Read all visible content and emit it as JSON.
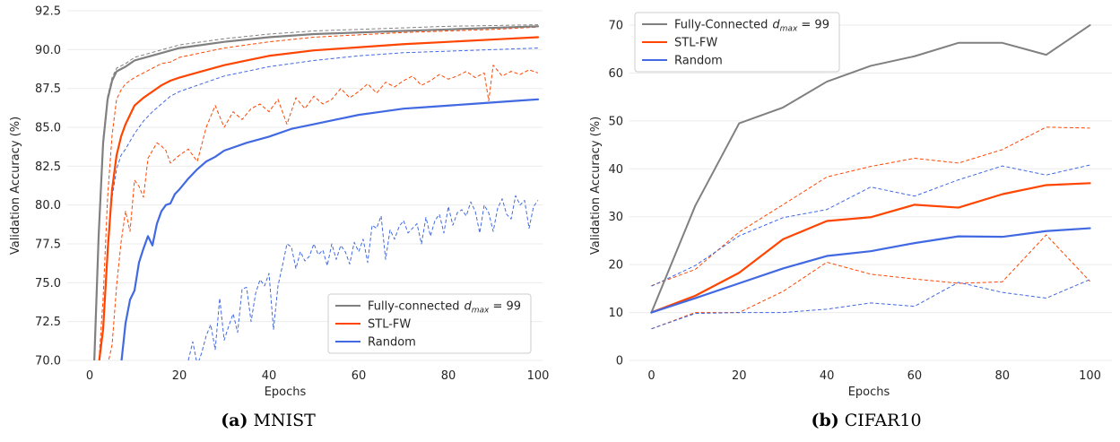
{
  "chart_data": [
    {
      "type": "line",
      "panel_id": "a",
      "caption_prefix": "(a)",
      "caption_text": "MNIST",
      "xlabel": "Epochs",
      "ylabel": "Validation Accuracy (%)",
      "xlim": [
        -5,
        101
      ],
      "ylim": [
        70,
        92.5
      ],
      "xticks": [
        0,
        20,
        40,
        60,
        80,
        100
      ],
      "yticks": [
        70.0,
        72.5,
        75.0,
        77.5,
        80.0,
        82.5,
        85.0,
        87.5,
        90.0,
        92.5
      ],
      "ytick_labels": [
        "70.0",
        "72.5",
        "75.0",
        "77.5",
        "80.0",
        "82.5",
        "85.0",
        "87.5",
        "90.0",
        "92.5"
      ],
      "grid": "horizontal",
      "legend_placement": "bottom-right",
      "legend": [
        {
          "name": "Fully-connected",
          "math": "d",
          "sub": "max",
          "suffix": " = 99",
          "color": "#808080"
        },
        {
          "name": "STL-FW",
          "color": "#FF4500"
        },
        {
          "name": "Random",
          "color": "#4169E1"
        }
      ],
      "series": [
        {
          "name": "Fully-connected mean",
          "color": "#808080",
          "width": 2.2,
          "dash": false,
          "x": [
            1,
            2,
            3,
            4,
            5,
            6,
            8,
            10,
            15,
            20,
            30,
            40,
            50,
            60,
            70,
            80,
            90,
            100
          ],
          "y": [
            68,
            78,
            84,
            86.8,
            88,
            88.6,
            88.9,
            89.3,
            89.7,
            90.1,
            90.5,
            90.8,
            91.0,
            91.1,
            91.2,
            91.3,
            91.4,
            91.5
          ]
        },
        {
          "name": "Fully-connected upper",
          "color": "#808080",
          "width": 1,
          "dash": true,
          "x": [
            1,
            2,
            3,
            4,
            5,
            6,
            8,
            10,
            15,
            20,
            30,
            40,
            50,
            60,
            70,
            80,
            90,
            100
          ],
          "y": [
            68,
            78.5,
            84.3,
            87,
            88.2,
            88.8,
            89.1,
            89.5,
            89.9,
            90.3,
            90.7,
            91.0,
            91.2,
            91.3,
            91.4,
            91.5,
            91.55,
            91.6
          ]
        },
        {
          "name": "STL-FW mean",
          "color": "#FF4500",
          "width": 2.2,
          "dash": false,
          "x": [
            2,
            3,
            4,
            5,
            6,
            7,
            8,
            9,
            10,
            12,
            14,
            16,
            18,
            20,
            25,
            30,
            35,
            40,
            50,
            60,
            70,
            80,
            90,
            100
          ],
          "y": [
            68,
            72,
            77,
            81,
            83.2,
            84.4,
            85.2,
            85.8,
            86.4,
            86.9,
            87.3,
            87.7,
            88.0,
            88.2,
            88.6,
            89.0,
            89.3,
            89.6,
            89.95,
            90.15,
            90.35,
            90.5,
            90.65,
            90.8
          ]
        },
        {
          "name": "STL-FW upper",
          "color": "#FF4500",
          "width": 1,
          "dash": true,
          "x": [
            2,
            3,
            4,
            5,
            6,
            7,
            8,
            10,
            12,
            14,
            16,
            18,
            20,
            25,
            30,
            35,
            40,
            50,
            60,
            70,
            80,
            90,
            100
          ],
          "y": [
            68,
            74,
            80.5,
            84.5,
            86.8,
            87.4,
            87.8,
            88.2,
            88.5,
            88.8,
            89.1,
            89.2,
            89.5,
            89.8,
            90.1,
            90.3,
            90.5,
            90.8,
            90.95,
            91.1,
            91.2,
            91.3,
            91.45
          ]
        },
        {
          "name": "STL-FW lower",
          "color": "#FF4500",
          "width": 1,
          "dash": true,
          "x": [
            4,
            5,
            6,
            7,
            8,
            9,
            10,
            11,
            12,
            13,
            14,
            15,
            16,
            17,
            18,
            20,
            22,
            24,
            26,
            28,
            30,
            32,
            34,
            36,
            38,
            40,
            42,
            44,
            46,
            48,
            50,
            52,
            54,
            56,
            58,
            60,
            62,
            64,
            66,
            68,
            70,
            72,
            74,
            76,
            78,
            80,
            82,
            84,
            86,
            88,
            89,
            90,
            92,
            94,
            96,
            98,
            100
          ],
          "y": [
            66,
            71,
            74.8,
            77.6,
            79.6,
            78.3,
            81.6,
            81.2,
            80.5,
            83.0,
            83.5,
            84.0,
            83.8,
            83.5,
            82.7,
            83.2,
            83.6,
            82.8,
            85.0,
            86.4,
            85.0,
            86.0,
            85.5,
            86.2,
            86.5,
            86.0,
            86.8,
            85.2,
            86.9,
            86.2,
            87.0,
            86.5,
            86.8,
            87.5,
            86.9,
            87.3,
            87.8,
            87.2,
            87.9,
            87.6,
            88.0,
            88.3,
            87.7,
            88.0,
            88.4,
            88.1,
            88.3,
            88.6,
            88.2,
            88.5,
            86.7,
            89.0,
            88.3,
            88.6,
            88.4,
            88.7,
            88.5
          ]
        },
        {
          "name": "Random mean",
          "color": "#4169E1",
          "width": 2.2,
          "dash": false,
          "x": [
            7,
            8,
            9,
            10,
            11,
            12,
            13,
            14,
            15,
            16,
            17,
            18,
            19,
            20,
            22,
            24,
            26,
            28,
            30,
            35,
            40,
            45,
            50,
            55,
            60,
            65,
            70,
            75,
            80,
            85,
            90,
            95,
            100
          ],
          "y": [
            69,
            72.4,
            73.9,
            74.5,
            76.3,
            77.2,
            78.0,
            77.4,
            78.8,
            79.6,
            80.0,
            80.1,
            80.7,
            81.0,
            81.7,
            82.3,
            82.8,
            83.1,
            83.5,
            84.0,
            84.4,
            84.9,
            85.2,
            85.5,
            85.8,
            86.0,
            86.2,
            86.3,
            86.4,
            86.5,
            86.6,
            86.7,
            86.8
          ]
        },
        {
          "name": "Random upper",
          "color": "#4169E1",
          "width": 1,
          "dash": true,
          "x": [
            2,
            3,
            4,
            5,
            6,
            7,
            8,
            10,
            12,
            14,
            16,
            18,
            20,
            25,
            30,
            35,
            40,
            50,
            60,
            70,
            80,
            90,
            100
          ],
          "y": [
            68,
            72,
            77.5,
            80.5,
            82.3,
            83.2,
            83.6,
            84.6,
            85.4,
            86.0,
            86.5,
            87.0,
            87.3,
            87.8,
            88.3,
            88.6,
            88.9,
            89.3,
            89.6,
            89.8,
            89.9,
            90.0,
            90.1
          ]
        },
        {
          "name": "Random lower",
          "color": "#4169E1",
          "width": 1,
          "dash": true,
          "x": [
            22,
            23,
            24,
            25,
            26,
            27,
            28,
            29,
            30,
            31,
            32,
            33,
            34,
            35,
            36,
            37,
            38,
            39,
            40,
            41,
            42,
            43,
            44,
            45,
            46,
            47,
            48,
            49,
            50,
            51,
            52,
            53,
            54,
            55,
            56,
            57,
            58,
            59,
            60,
            61,
            62,
            63,
            64,
            65,
            66,
            67,
            68,
            69,
            70,
            71,
            72,
            73,
            74,
            75,
            76,
            77,
            78,
            79,
            80,
            81,
            82,
            83,
            84,
            85,
            86,
            87,
            88,
            89,
            90,
            91,
            92,
            93,
            94,
            95,
            96,
            97,
            98,
            99,
            100
          ],
          "y": [
            70,
            71.2,
            68.5,
            70.5,
            71.6,
            72.3,
            70.7,
            74.0,
            71.3,
            72.2,
            73.0,
            71.8,
            74.6,
            74.7,
            72.5,
            74.3,
            75.2,
            74.8,
            75.6,
            72.0,
            74.8,
            76.1,
            77.5,
            77.3,
            75.9,
            77.0,
            76.4,
            76.7,
            77.5,
            76.8,
            77.1,
            76.1,
            77.5,
            76.5,
            77.4,
            77.0,
            76.2,
            77.6,
            77.0,
            77.8,
            76.3,
            78.7,
            78.5,
            79.3,
            76.5,
            78.4,
            77.8,
            78.6,
            79.0,
            78.2,
            78.5,
            78.8,
            77.5,
            79.2,
            78.0,
            79.0,
            79.4,
            78.2,
            79.9,
            78.7,
            79.5,
            79.7,
            79.3,
            80.2,
            79.6,
            78.2,
            80.0,
            79.5,
            78.3,
            79.8,
            80.4,
            79.4,
            79.1,
            80.6,
            80.0,
            80.3,
            78.5,
            79.9,
            80.3
          ]
        }
      ]
    },
    {
      "type": "line",
      "panel_id": "b",
      "caption_prefix": "(b)",
      "caption_text": "CIFAR10",
      "xlabel": "Epochs",
      "ylabel": "Validation Accuracy (%)",
      "xlim": [
        -5,
        105
      ],
      "ylim": [
        0,
        73
      ],
      "xticks": [
        0,
        20,
        40,
        60,
        80,
        100
      ],
      "yticks": [
        0,
        10,
        20,
        30,
        40,
        50,
        60,
        70
      ],
      "ytick_labels": [
        "0",
        "10",
        "20",
        "30",
        "40",
        "50",
        "60",
        "70"
      ],
      "grid": "horizontal",
      "legend_placement": "top-left",
      "legend": [
        {
          "name": "Fully-Connected",
          "math": "d",
          "sub": "max",
          "suffix": " = 99",
          "color": "#808080"
        },
        {
          "name": "STL-FW",
          "color": "#FF4500"
        },
        {
          "name": "Random",
          "color": "#4169E1"
        }
      ],
      "series": [
        {
          "name": "Fully-Connected mean",
          "color": "#808080",
          "width": 2,
          "dash": false,
          "x": [
            0,
            10,
            20,
            30,
            40,
            50,
            60,
            70,
            80,
            90,
            100
          ],
          "y": [
            10.0,
            32.3,
            49.5,
            52.8,
            58.2,
            61.5,
            63.5,
            66.3,
            66.3,
            63.8,
            70.0
          ]
        },
        {
          "name": "STL-FW mean",
          "color": "#FF4500",
          "width": 2.2,
          "dash": false,
          "x": [
            0,
            10,
            20,
            30,
            40,
            50,
            60,
            70,
            80,
            90,
            100
          ],
          "y": [
            10.0,
            13.5,
            18.3,
            25.3,
            29.1,
            29.9,
            32.5,
            31.9,
            34.7,
            36.6,
            37.0
          ]
        },
        {
          "name": "STL-FW upper",
          "color": "#FF4500",
          "width": 1,
          "dash": true,
          "x": [
            0,
            10,
            20,
            30,
            40,
            50,
            60,
            70,
            80,
            90,
            100
          ],
          "y": [
            15.6,
            19.0,
            26.8,
            32.5,
            38.3,
            40.5,
            42.2,
            41.2,
            44.0,
            48.7,
            48.5
          ]
        },
        {
          "name": "STL-FW lower",
          "color": "#FF4500",
          "width": 1,
          "dash": true,
          "x": [
            0,
            10,
            20,
            30,
            40,
            50,
            60,
            70,
            80,
            90,
            100
          ],
          "y": [
            6.6,
            10.0,
            10.0,
            14.4,
            20.5,
            18.0,
            17.0,
            16.1,
            16.4,
            26.2,
            16.5
          ]
        },
        {
          "name": "Random mean",
          "color": "#4169E1",
          "width": 2.2,
          "dash": false,
          "x": [
            0,
            10,
            20,
            30,
            40,
            50,
            60,
            70,
            80,
            90,
            100
          ],
          "y": [
            10.0,
            13.0,
            16.1,
            19.2,
            21.8,
            22.8,
            24.5,
            25.9,
            25.8,
            27.0,
            27.6
          ]
        },
        {
          "name": "Random upper",
          "color": "#4169E1",
          "width": 1,
          "dash": true,
          "x": [
            0,
            10,
            20,
            30,
            40,
            50,
            60,
            70,
            80,
            90,
            100
          ],
          "y": [
            15.5,
            19.8,
            26.0,
            29.8,
            31.5,
            36.2,
            34.3,
            37.7,
            40.6,
            38.7,
            40.8
          ]
        },
        {
          "name": "Random lower",
          "color": "#4169E1",
          "width": 1,
          "dash": true,
          "x": [
            0,
            10,
            20,
            30,
            40,
            50,
            60,
            70,
            80,
            90,
            100
          ],
          "y": [
            6.6,
            9.8,
            10.0,
            10.0,
            10.7,
            12.0,
            11.3,
            16.3,
            14.2,
            13.0,
            16.9
          ]
        }
      ]
    }
  ]
}
